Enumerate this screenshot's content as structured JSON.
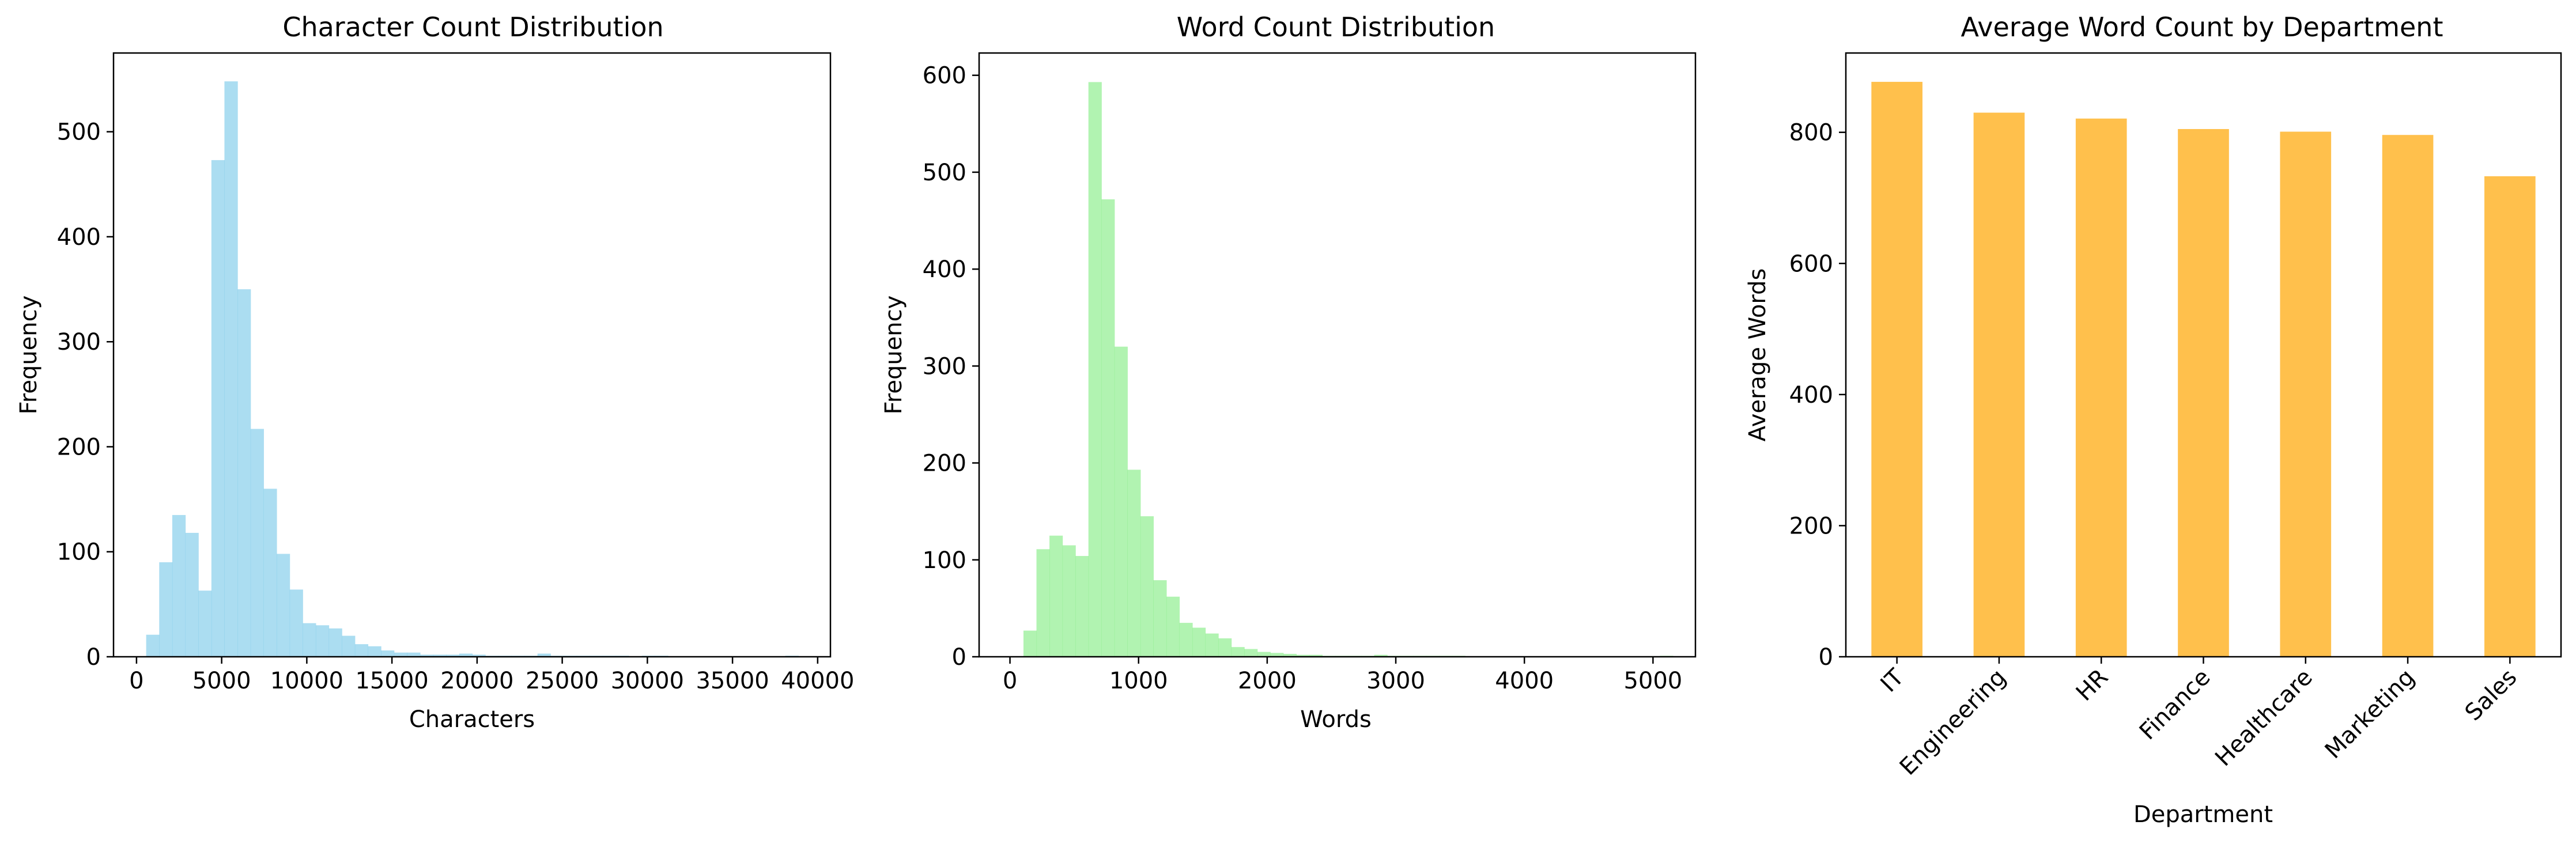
{
  "chart_data": [
    {
      "type": "bar",
      "title": "Character Count Distribution",
      "xlabel": "Characters",
      "ylabel": "Frequency",
      "xlim": [
        -1350,
        40750
      ],
      "ylim": [
        0,
        575
      ],
      "xticks": [
        0,
        5000,
        10000,
        15000,
        20000,
        25000,
        30000,
        35000,
        40000
      ],
      "xtick_labels": [
        "0",
        "5000",
        "10000",
        "15000",
        "20000",
        "25000",
        "30000",
        "35000",
        "40000"
      ],
      "yticks": [
        0,
        100,
        200,
        300,
        400,
        500
      ],
      "ytick_labels": [
        "0",
        "100",
        "200",
        "300",
        "400",
        "500"
      ],
      "bin_start": 567,
      "bin_width": 766,
      "values": [
        21,
        90,
        135,
        118,
        63,
        473,
        548,
        350,
        217,
        160,
        98,
        64,
        32,
        30,
        27,
        20,
        12,
        10,
        6,
        4,
        4,
        2,
        2,
        2,
        3,
        2,
        1,
        1,
        1,
        1,
        3,
        1,
        1,
        1,
        1,
        1,
        1,
        0,
        1,
        1,
        0,
        0,
        0,
        0,
        0,
        0,
        0,
        0,
        0,
        1
      ],
      "color": "#87ceeb",
      "opacity": 0.7
    },
    {
      "type": "bar",
      "title": "Word Count Distribution",
      "xlabel": "Words",
      "ylabel": "Frequency",
      "xlim": [
        -240,
        5330
      ],
      "ylim": [
        0,
        623
      ],
      "xticks": [
        0,
        1000,
        2000,
        3000,
        4000,
        5000
      ],
      "xtick_labels": [
        "0",
        "1000",
        "2000",
        "3000",
        "4000",
        "5000"
      ],
      "yticks": [
        0,
        100,
        200,
        300,
        400,
        500,
        600
      ],
      "ytick_labels": [
        "0",
        "100",
        "200",
        "300",
        "400",
        "500",
        "600"
      ],
      "bin_start": 105,
      "bin_width": 101,
      "values": [
        27,
        111,
        125,
        115,
        104,
        593,
        472,
        320,
        193,
        145,
        79,
        62,
        35,
        30,
        24,
        19,
        10,
        8,
        5,
        4,
        3,
        2,
        2,
        1,
        1,
        1,
        1,
        2,
        1,
        1,
        1,
        1,
        1,
        1,
        0,
        0,
        0,
        0,
        0,
        0,
        0,
        0,
        0,
        0,
        0,
        0,
        0,
        0,
        0,
        1
      ],
      "color": "#90ee90",
      "opacity": 0.7
    },
    {
      "type": "bar",
      "title": "Average Word Count by Department",
      "xlabel": "Department",
      "ylabel": "Average Words",
      "categories": [
        "IT",
        "Engineering",
        "HR",
        "Finance",
        "Healthcare",
        "Marketing",
        "Sales"
      ],
      "values": [
        877,
        830,
        821,
        805,
        801,
        796,
        733
      ],
      "ylim": [
        0,
        921
      ],
      "yticks": [
        0,
        200,
        400,
        600,
        800
      ],
      "ytick_labels": [
        "0",
        "200",
        "400",
        "600",
        "800"
      ],
      "color": "#ffa500",
      "opacity": 0.7
    }
  ]
}
